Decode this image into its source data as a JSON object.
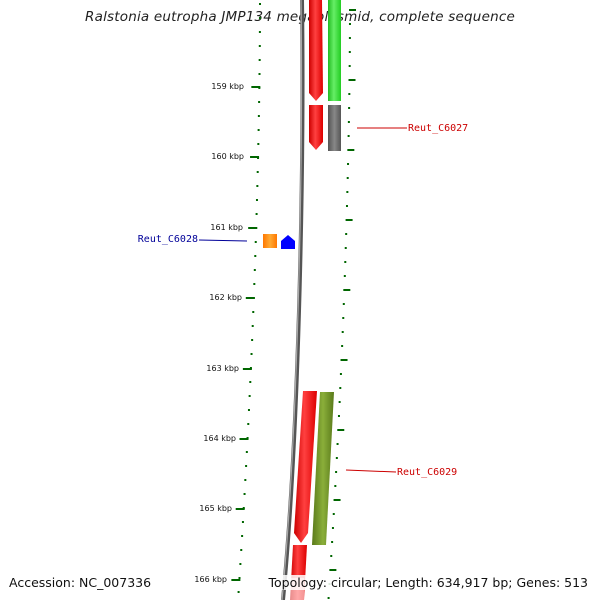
{
  "title": "Ralstonia eutropha JMP134 megaplasmid, complete sequence",
  "accession": "Accession: NC_007336",
  "topology": "Topology: circular; Length: 634,917 bp; Genes: 513",
  "scale_labels": [
    "159 kbp",
    "160 kbp",
    "161 kbp",
    "162 kbp",
    "163 kbp",
    "164 kbp",
    "165 kbp",
    "166 kbp"
  ],
  "gene_labels": {
    "c6027": "Reut_C6027",
    "c6028": "Reut_C6028",
    "c6029": "Reut_C6029"
  },
  "colors": {
    "red": "#ff0000",
    "green": "#33dd33",
    "dark_gray": "#666666",
    "orange": "#ff8800",
    "blue": "#0000ff",
    "olive": "#6b8e23",
    "tick": "#006600",
    "label_red": "#cc0000",
    "label_blue": "#000099"
  }
}
